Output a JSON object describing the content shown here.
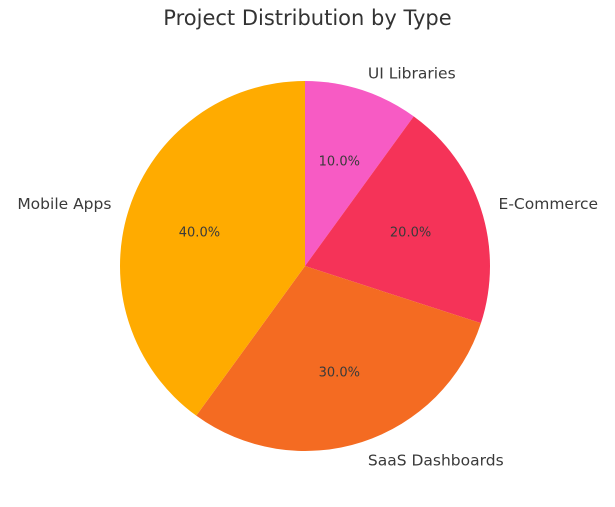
{
  "chart_data": {
    "type": "pie",
    "title": "Project Distribution by Type",
    "categories": [
      "UI Libraries",
      "E-Commerce",
      "SaaS Dashboards",
      "Mobile Apps"
    ],
    "values": [
      10,
      20,
      30,
      40
    ],
    "labels_pct": [
      "10.0%",
      "20.0%",
      "30.0%",
      "40.0%"
    ],
    "colors": [
      "#f75bc4",
      "#f53358",
      "#f46b22",
      "#ffab00"
    ],
    "start_angle_deg": 90,
    "direction": "counterclockwise-from-top: Mobile Apps, SaaS Dashboards, E-Commerce, UI Libraries",
    "legend": "none"
  }
}
